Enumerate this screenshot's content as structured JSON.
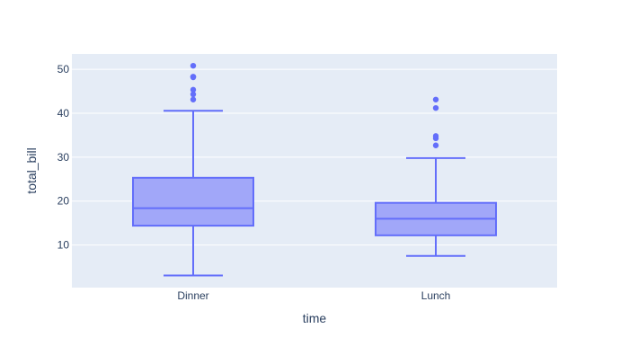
{
  "chart_data": {
    "type": "box",
    "title": "",
    "xlabel": "time",
    "ylabel": "total_bill",
    "categories": [
      "Dinner",
      "Lunch"
    ],
    "ylim": [
      0.3,
      53.5
    ],
    "yticks": [
      10,
      20,
      30,
      40,
      50
    ],
    "grid": true,
    "legend": "none",
    "boxes": [
      {
        "category": "Dinner",
        "lower_whisker": 3.07,
        "q1": 14.4,
        "median": 18.39,
        "q3": 25.3,
        "upper_whisker": 40.55,
        "outliers": [
          43.11,
          44.3,
          45.35,
          48.17,
          48.27,
          48.33,
          50.81
        ]
      },
      {
        "category": "Lunch",
        "lower_whisker": 7.51,
        "q1": 12.2,
        "median": 15.97,
        "q3": 19.6,
        "upper_whisker": 29.8,
        "outliers": [
          32.68,
          34.3,
          34.81,
          41.19,
          43.11
        ]
      }
    ],
    "colors": {
      "plot_bg": "#e5ecf6",
      "grid": "#ffffff",
      "box_line": "#636efa",
      "box_fill": "#a1a7f9",
      "text": "#2a3f5f"
    }
  }
}
